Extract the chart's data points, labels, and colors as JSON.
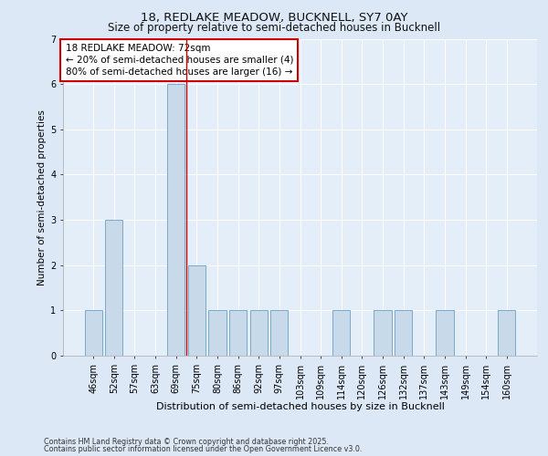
{
  "title_line1": "18, REDLAKE MEADOW, BUCKNELL, SY7 0AY",
  "title_line2": "Size of property relative to semi-detached houses in Bucknell",
  "xlabel": "Distribution of semi-detached houses by size in Bucknell",
  "ylabel": "Number of semi-detached properties",
  "categories": [
    "46sqm",
    "52sqm",
    "57sqm",
    "63sqm",
    "69sqm",
    "75sqm",
    "80sqm",
    "86sqm",
    "92sqm",
    "97sqm",
    "103sqm",
    "109sqm",
    "114sqm",
    "120sqm",
    "126sqm",
    "132sqm",
    "137sqm",
    "143sqm",
    "149sqm",
    "154sqm",
    "160sqm"
  ],
  "values": [
    1,
    3,
    0,
    0,
    6,
    2,
    1,
    1,
    1,
    1,
    0,
    0,
    1,
    0,
    1,
    1,
    0,
    1,
    0,
    0,
    1
  ],
  "bar_color": "#c8d9ea",
  "bar_edge_color": "#7aaac8",
  "property_line_x": 4.5,
  "annotation_text": "18 REDLAKE MEADOW: 72sqm\n← 20% of semi-detached houses are smaller (4)\n80% of semi-detached houses are larger (16) →",
  "annotation_box_color": "#ffffff",
  "annotation_box_edge": "#cc0000",
  "ylim": [
    0,
    7
  ],
  "yticks": [
    0,
    1,
    2,
    3,
    4,
    5,
    6,
    7
  ],
  "footer_line1": "Contains HM Land Registry data © Crown copyright and database right 2025.",
  "footer_line2": "Contains public sector information licensed under the Open Government Licence v3.0.",
  "bg_color": "#dce8f5",
  "plot_bg_color": "#e4eef8",
  "grid_color": "#ffffff",
  "red_line_color": "#cc0000",
  "title1_fontsize": 9.5,
  "title2_fontsize": 8.5,
  "xlabel_fontsize": 8.0,
  "ylabel_fontsize": 7.5,
  "tick_fontsize": 7.0,
  "annot_fontsize": 7.5,
  "footer_fontsize": 5.8
}
